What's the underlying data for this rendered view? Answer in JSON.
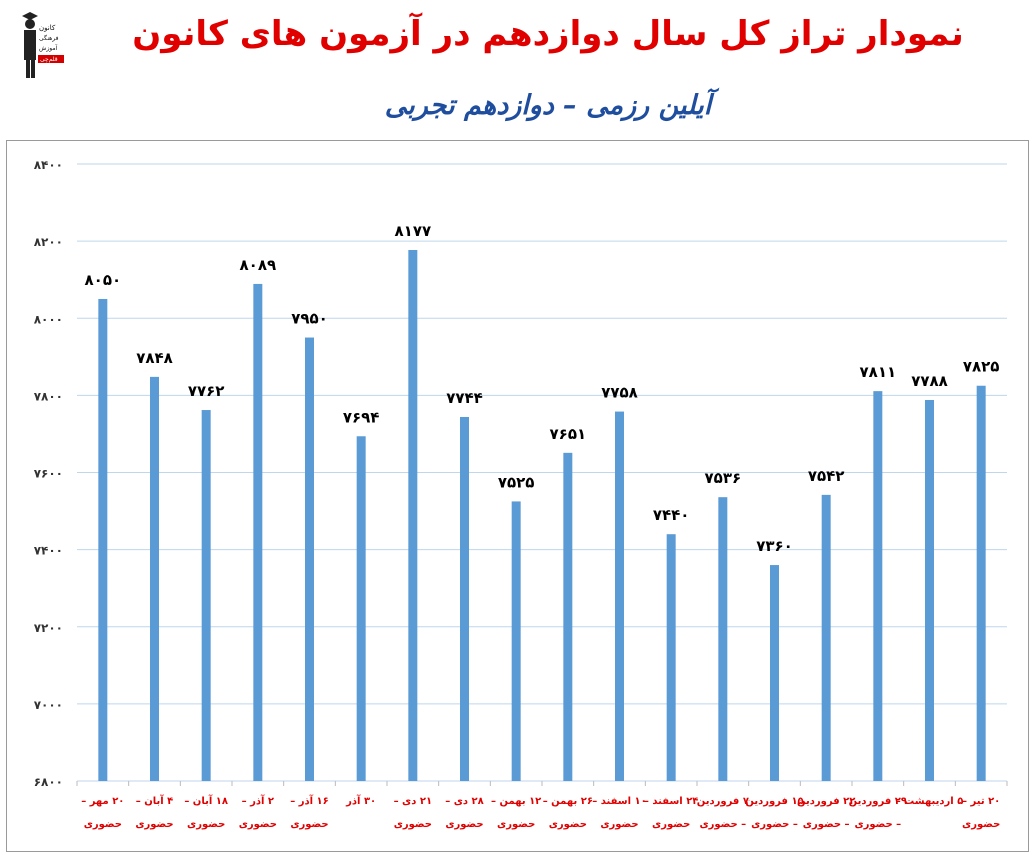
{
  "header": {
    "title": "نمودار تراز کل سال دوازدهم در آزمون های کانون",
    "subtitle": "آیلین رزمی – دوازدهم تجربی",
    "logo_text": [
      "کانون",
      "فرهنگی",
      "آموزش",
      "قلم‌چی"
    ]
  },
  "colors": {
    "title": "#e00000",
    "subtitle": "#1f4e9e",
    "bar": "#5b9bd5",
    "grid": "#bfd6ec",
    "xlabel": "#e00000",
    "value_label": "#000000"
  },
  "chart_data": {
    "type": "bar",
    "title": "نمودار تراز کل سال دوازدهم در آزمون های کانون",
    "subtitle": "آیلین رزمی – دوازدهم تجربی",
    "ylim": [
      6800,
      8400
    ],
    "yticks": [
      6800,
      7000,
      7200,
      7400,
      7600,
      7800,
      8000,
      8200,
      8400
    ],
    "ytick_labels": [
      "۶۸۰۰",
      "۷۰۰۰",
      "۷۲۰۰",
      "۷۴۰۰",
      "۷۶۰۰",
      "۷۸۰۰",
      "۸۰۰۰",
      "۸۲۰۰",
      "۸۴۰۰"
    ],
    "grid": true,
    "categories": [
      [
        "۲۰ مهر –",
        "حضوری"
      ],
      [
        "۴ آبان –",
        "حضوری"
      ],
      [
        "۱۸ آبان –",
        "حضوری"
      ],
      [
        "۲ آذر –",
        "حضوری"
      ],
      [
        "۱۶ آذر –",
        "حضوری"
      ],
      [
        "۳۰ آذر",
        ""
      ],
      [
        "۲۱ دی –",
        "حضوری"
      ],
      [
        "۲۸ دی –",
        "حضوری"
      ],
      [
        "۱۲ بهمن –",
        "حضوری"
      ],
      [
        "۲۶ بهمن –",
        "حضوری"
      ],
      [
        "۱۰ اسفند –",
        "حضوری"
      ],
      [
        "۲۴ اسفند –",
        "حضوری"
      ],
      [
        "۷ فروردین",
        "– حضوری"
      ],
      [
        "۱۵ فروردین",
        "– حضوری"
      ],
      [
        "۲۲ فروردین",
        "– حضوری"
      ],
      [
        "۲۹ فروردین",
        "– حضوری"
      ],
      [
        "۵ اردیبهشت –",
        ""
      ],
      [
        "۲۰ تیر –",
        "حضوری"
      ]
    ],
    "values": [
      8050,
      7848,
      7762,
      8089,
      7950,
      7694,
      8177,
      7744,
      7525,
      7651,
      7758,
      7440,
      7536,
      7360,
      7542,
      7811,
      7788,
      7825
    ],
    "value_labels": [
      "۸۰۵۰",
      "۷۸۴۸",
      "۷۷۶۲",
      "۸۰۸۹",
      "۷۹۵۰",
      "۷۶۹۴",
      "۸۱۷۷",
      "۷۷۴۴",
      "۷۵۲۵",
      "۷۶۵۱",
      "۷۷۵۸",
      "۷۴۴۰",
      "۷۵۳۶",
      "۷۳۶۰",
      "۷۵۴۲",
      "۷۸۱۱",
      "۷۷۸۸",
      "۷۸۲۵"
    ]
  }
}
